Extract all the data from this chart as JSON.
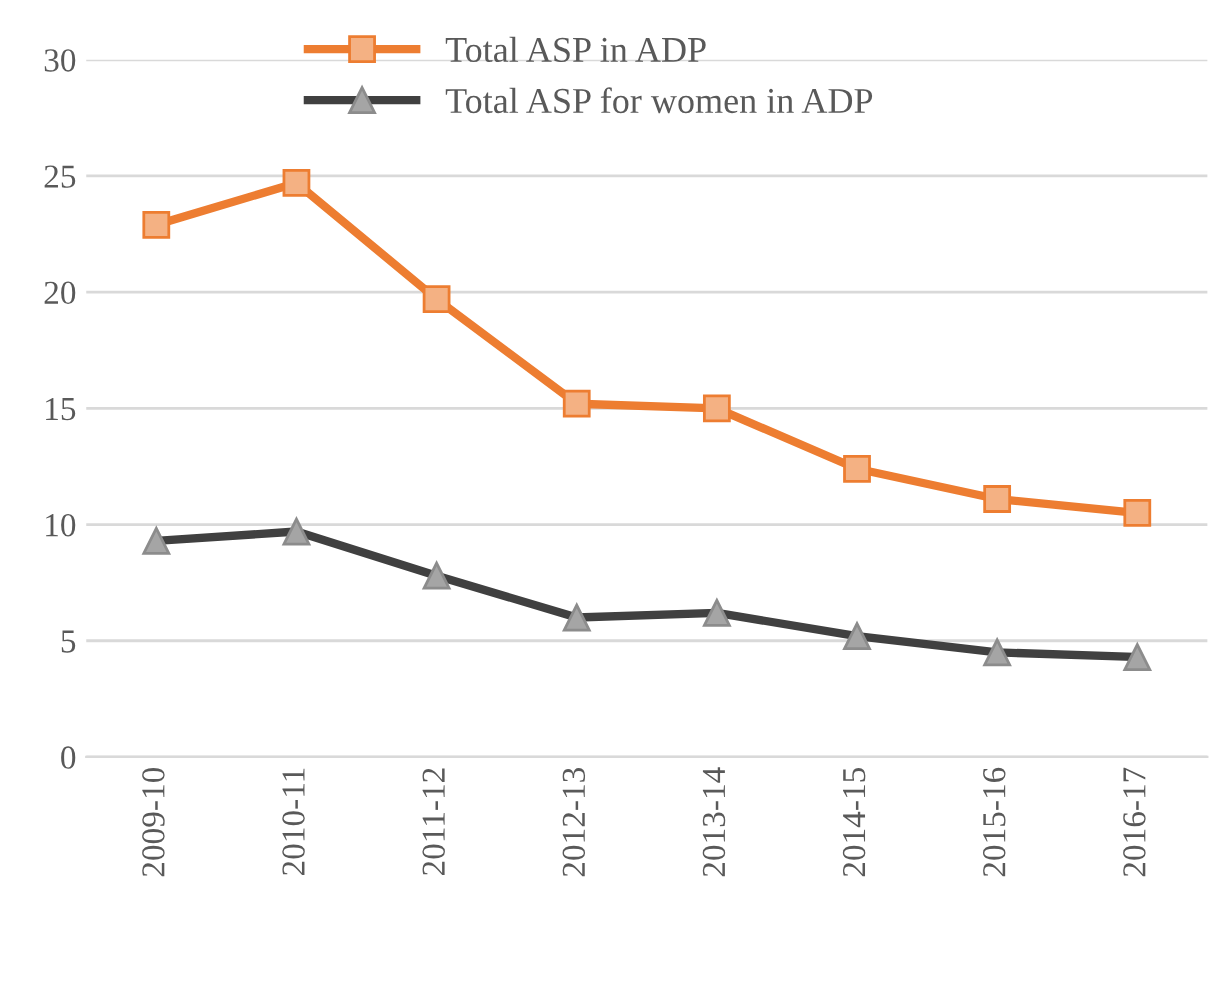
{
  "chart_data": {
    "type": "line",
    "categories": [
      "2009-10",
      "2010-11",
      "2011-12",
      "2012-13",
      "2013-14",
      "2014-15",
      "2015-16",
      "2016-17"
    ],
    "series": [
      {
        "name": "Total ASP in ADP",
        "color": "#ed7d31",
        "marker": "square",
        "values": [
          22.9,
          24.7,
          19.7,
          15.2,
          15.0,
          12.4,
          11.1,
          10.5
        ]
      },
      {
        "name": "Total ASP for women in ADP",
        "color": "#404040",
        "marker": "triangle",
        "values": [
          9.3,
          9.7,
          7.8,
          6.0,
          6.2,
          5.2,
          4.5,
          4.3
        ]
      }
    ],
    "ylim": [
      0,
      30
    ],
    "yticks": [
      0,
      5,
      10,
      15,
      20,
      25,
      30
    ],
    "grid": "y",
    "legend": "top",
    "line_style": "solid"
  }
}
